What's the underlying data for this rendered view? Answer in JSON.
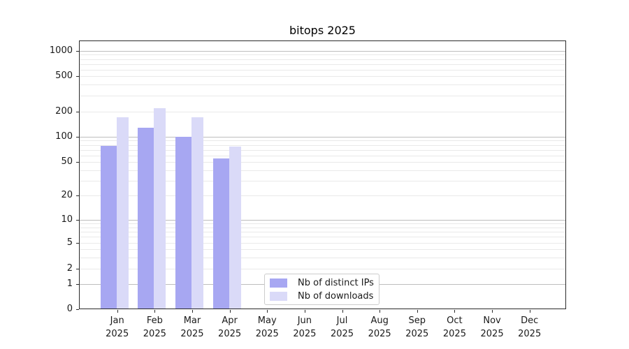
{
  "chart_data": {
    "type": "bar",
    "title": "bitops 2025",
    "yscale": "symlog",
    "grid": "horizontal",
    "legend_position": "lower-center",
    "categories": [
      "Jan",
      "Feb",
      "Mar",
      "Apr",
      "May",
      "Jun",
      "Jul",
      "Aug",
      "Sep",
      "Oct",
      "Nov",
      "Dec"
    ],
    "x_sublabel": "2025",
    "y_ticks": [
      0,
      1,
      2,
      5,
      10,
      20,
      50,
      100,
      200,
      500,
      1000
    ],
    "ylim": [
      0,
      1300
    ],
    "series": [
      {
        "name": "Nb of distinct IPs",
        "color": "#a7a7f2",
        "values": [
          78,
          128,
          100,
          55,
          0,
          0,
          0,
          0,
          0,
          0,
          0,
          0
        ]
      },
      {
        "name": "Nb of downloads",
        "color": "#dadaf8",
        "values": [
          170,
          220,
          170,
          76,
          0,
          0,
          0,
          0,
          0,
          0,
          0,
          0
        ]
      }
    ],
    "colors": {
      "grid_major": "#bdbdbd",
      "grid_minor": "#e9e9e9",
      "axis": "#2a2a2a",
      "text": "#1a1a1a",
      "background": "#ffffff"
    }
  }
}
